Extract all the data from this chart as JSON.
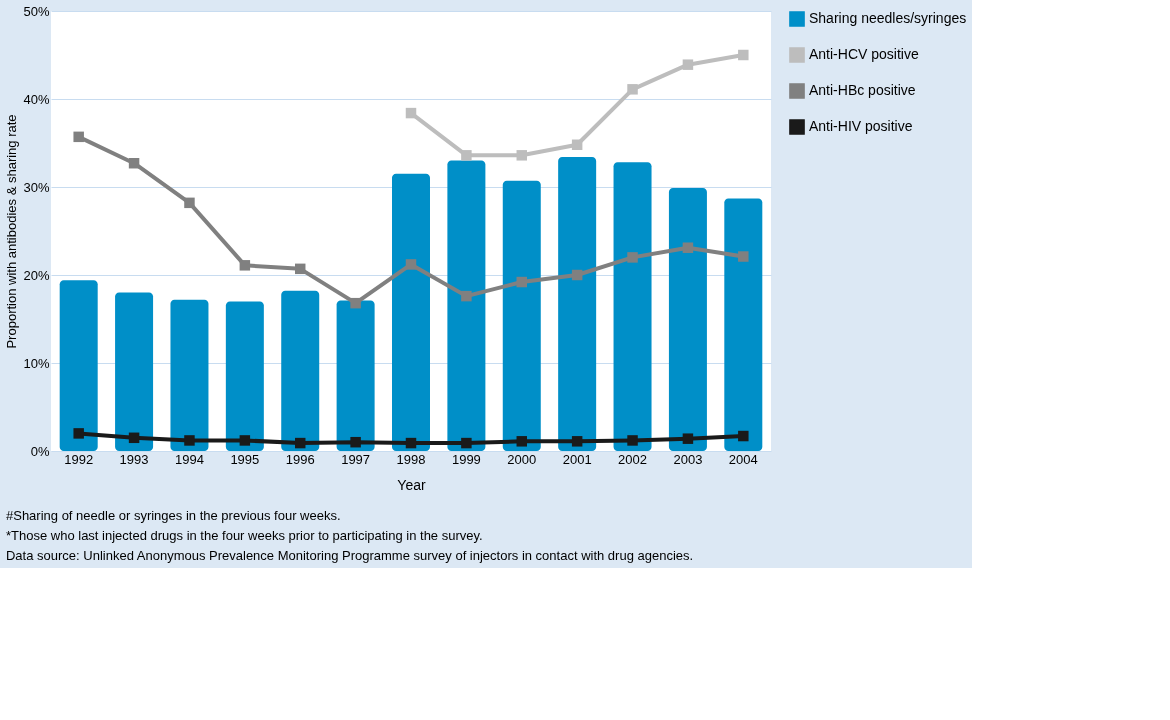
{
  "chart_data": {
    "type": "bar",
    "xlabel": "Year",
    "ylabel": "Proportion with antibodies & sharing rate",
    "categories": [
      "1992",
      "1993",
      "1994",
      "1995",
      "1996",
      "1997",
      "1998",
      "1999",
      "2000",
      "2001",
      "2002",
      "2003",
      "2004"
    ],
    "series": [
      {
        "name": "Sharing needles/syringes",
        "color": "#008fc8",
        "values": [
          19.4,
          18.0,
          17.2,
          17.0,
          18.2,
          17.1,
          31.5,
          33.0,
          30.7,
          33.4,
          32.8,
          29.9,
          28.7
        ]
      },
      {
        "name": "Anti-HCV positive",
        "type": "line",
        "color": "#bdbdbd",
        "values": [
          null,
          null,
          null,
          null,
          null,
          null,
          38.4,
          33.6,
          33.6,
          34.8,
          41.1,
          43.9,
          45.0
        ]
      },
      {
        "name": "Anti-HBc positive",
        "type": "line",
        "color": "#808080",
        "values": [
          35.7,
          32.7,
          28.2,
          21.1,
          20.7,
          16.8,
          21.2,
          17.6,
          19.2,
          20.0,
          22.0,
          23.1,
          22.1
        ]
      },
      {
        "name": "Anti-HIV positive",
        "type": "line",
        "color": "#1a1a1a",
        "values": [
          2.0,
          1.5,
          1.2,
          1.2,
          0.9,
          1.0,
          0.9,
          0.9,
          1.1,
          1.1,
          1.2,
          1.4,
          1.7
        ]
      }
    ],
    "ylim": [
      0,
      50
    ],
    "yticks": [
      {
        "value": 0,
        "label": "0%"
      },
      {
        "value": 10,
        "label": "10%"
      },
      {
        "value": 20,
        "label": "20%"
      },
      {
        "value": 30,
        "label": "30%"
      },
      {
        "value": 40,
        "label": "40%"
      },
      {
        "value": 50,
        "label": "50%"
      }
    ],
    "grid": "y",
    "legend": "right",
    "marker": "square",
    "line_style": "solid",
    "annotations": [
      "#Sharing of needle or syringes in the previous four weeks.",
      "*Those who last injected drugs in the four weeks prior to participating in the survey.",
      "Data source: Unlinked Anonymous Prevalence Monitoring Programme survey of injectors in contact with drug agencies."
    ]
  }
}
